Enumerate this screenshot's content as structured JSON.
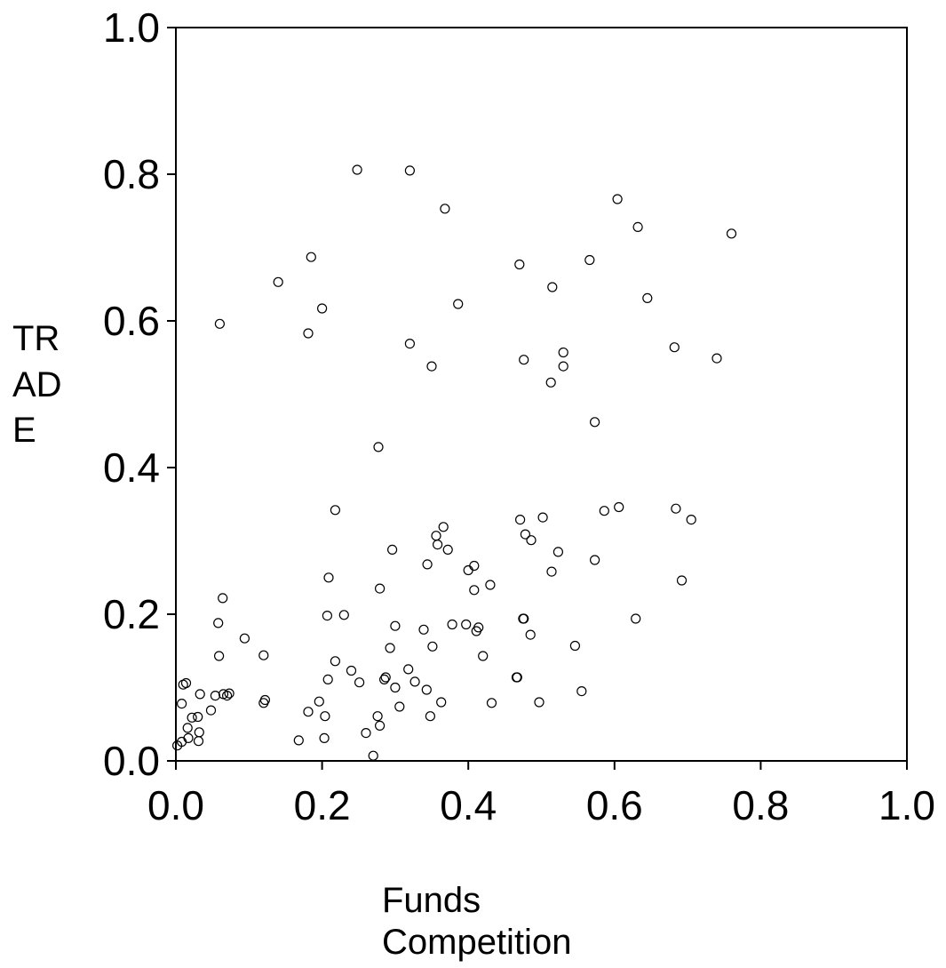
{
  "chart_data": {
    "type": "scatter",
    "xlabel": [
      "Funds",
      "Competition"
    ],
    "ylabel": [
      "TR",
      "AD",
      "E"
    ],
    "xlim": [
      0,
      1
    ],
    "ylim": [
      0,
      1
    ],
    "x_ticks": [
      "0.0",
      "0.2",
      "0.4",
      "0.6",
      "0.8",
      "1.0"
    ],
    "y_ticks": [
      "0.0",
      "0.2",
      "0.4",
      "0.6",
      "0.8",
      "1.0"
    ],
    "grid": false,
    "marker": "open-circle",
    "points": [
      [
        0.248,
        0.806
      ],
      [
        0.32,
        0.805
      ],
      [
        0.368,
        0.753
      ],
      [
        0.604,
        0.766
      ],
      [
        0.632,
        0.728
      ],
      [
        0.76,
        0.719
      ],
      [
        0.14,
        0.653
      ],
      [
        0.185,
        0.687
      ],
      [
        0.2,
        0.617
      ],
      [
        0.181,
        0.583
      ],
      [
        0.06,
        0.596
      ],
      [
        0.386,
        0.623
      ],
      [
        0.32,
        0.569
      ],
      [
        0.35,
        0.538
      ],
      [
        0.47,
        0.677
      ],
      [
        0.515,
        0.646
      ],
      [
        0.566,
        0.683
      ],
      [
        0.645,
        0.631
      ],
      [
        0.476,
        0.547
      ],
      [
        0.513,
        0.516
      ],
      [
        0.53,
        0.557
      ],
      [
        0.53,
        0.538
      ],
      [
        0.682,
        0.564
      ],
      [
        0.74,
        0.549
      ],
      [
        0.573,
        0.462
      ],
      [
        0.277,
        0.428
      ],
      [
        0.218,
        0.342
      ],
      [
        0.366,
        0.319
      ],
      [
        0.356,
        0.307
      ],
      [
        0.358,
        0.295
      ],
      [
        0.372,
        0.288
      ],
      [
        0.296,
        0.288
      ],
      [
        0.344,
        0.268
      ],
      [
        0.4,
        0.26
      ],
      [
        0.408,
        0.266
      ],
      [
        0.209,
        0.25
      ],
      [
        0.279,
        0.235
      ],
      [
        0.43,
        0.24
      ],
      [
        0.408,
        0.233
      ],
      [
        0.471,
        0.329
      ],
      [
        0.478,
        0.309
      ],
      [
        0.486,
        0.301
      ],
      [
        0.502,
        0.332
      ],
      [
        0.523,
        0.285
      ],
      [
        0.514,
        0.258
      ],
      [
        0.573,
        0.274
      ],
      [
        0.586,
        0.341
      ],
      [
        0.606,
        0.346
      ],
      [
        0.684,
        0.344
      ],
      [
        0.705,
        0.329
      ],
      [
        0.692,
        0.246
      ],
      [
        0.064,
        0.222
      ],
      [
        0.058,
        0.188
      ],
      [
        0.094,
        0.167
      ],
      [
        0.207,
        0.198
      ],
      [
        0.23,
        0.199
      ],
      [
        0.3,
        0.184
      ],
      [
        0.339,
        0.179
      ],
      [
        0.378,
        0.186
      ],
      [
        0.397,
        0.186
      ],
      [
        0.411,
        0.177
      ],
      [
        0.414,
        0.182
      ],
      [
        0.475,
        0.194
      ],
      [
        0.476,
        0.194
      ],
      [
        0.629,
        0.194
      ],
      [
        0.485,
        0.172
      ],
      [
        0.546,
        0.157
      ],
      [
        0.059,
        0.143
      ],
      [
        0.12,
        0.144
      ],
      [
        0.218,
        0.136
      ],
      [
        0.293,
        0.154
      ],
      [
        0.351,
        0.156
      ],
      [
        0.42,
        0.143
      ],
      [
        0.24,
        0.123
      ],
      [
        0.208,
        0.111
      ],
      [
        0.251,
        0.107
      ],
      [
        0.287,
        0.114
      ],
      [
        0.285,
        0.111
      ],
      [
        0.318,
        0.125
      ],
      [
        0.327,
        0.108
      ],
      [
        0.3,
        0.1
      ],
      [
        0.343,
        0.097
      ],
      [
        0.466,
        0.114
      ],
      [
        0.467,
        0.114
      ],
      [
        0.555,
        0.095
      ],
      [
        0.01,
        0.104
      ],
      [
        0.014,
        0.106
      ],
      [
        0.033,
        0.091
      ],
      [
        0.054,
        0.089
      ],
      [
        0.065,
        0.091
      ],
      [
        0.07,
        0.089
      ],
      [
        0.073,
        0.092
      ],
      [
        0.12,
        0.079
      ],
      [
        0.122,
        0.083
      ],
      [
        0.008,
        0.078
      ],
      [
        0.048,
        0.069
      ],
      [
        0.022,
        0.059
      ],
      [
        0.03,
        0.06
      ],
      [
        0.016,
        0.045
      ],
      [
        0.032,
        0.039
      ],
      [
        0.017,
        0.031
      ],
      [
        0.031,
        0.027
      ],
      [
        0.008,
        0.026
      ],
      [
        0.002,
        0.021
      ],
      [
        0.196,
        0.081
      ],
      [
        0.181,
        0.067
      ],
      [
        0.204,
        0.061
      ],
      [
        0.276,
        0.061
      ],
      [
        0.279,
        0.048
      ],
      [
        0.306,
        0.074
      ],
      [
        0.348,
        0.061
      ],
      [
        0.363,
        0.08
      ],
      [
        0.432,
        0.079
      ],
      [
        0.497,
        0.08
      ],
      [
        0.168,
        0.028
      ],
      [
        0.203,
        0.031
      ],
      [
        0.26,
        0.038
      ],
      [
        0.27,
        0.007
      ]
    ]
  }
}
